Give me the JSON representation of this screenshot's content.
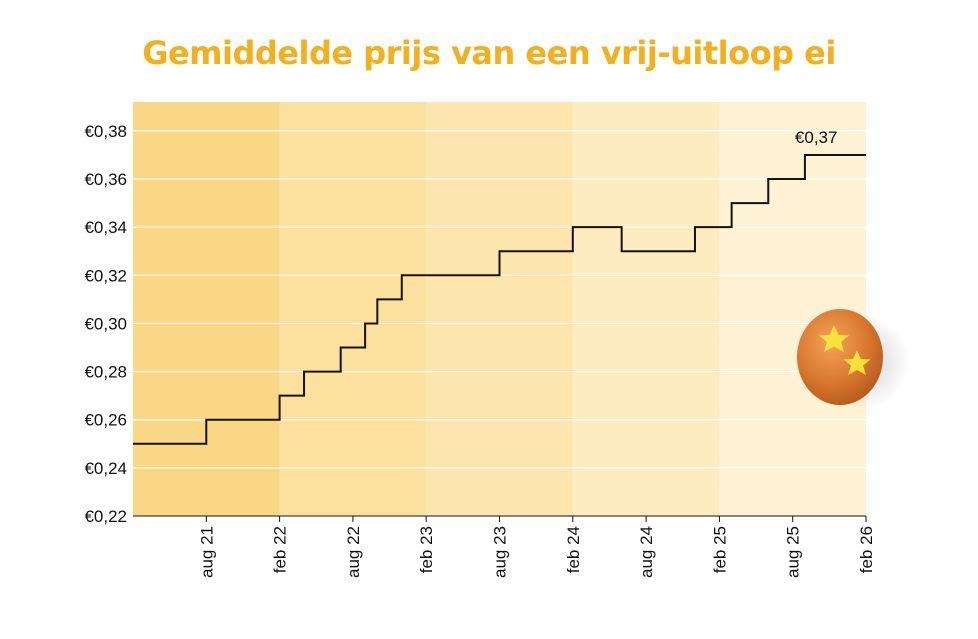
{
  "chart_data": {
    "type": "line",
    "title": "Gemiddelde prijs van een vrij-uitloop ei",
    "xlabel": "",
    "ylabel": "",
    "step": true,
    "x_ticks": [
      "aug 21",
      "feb 22",
      "aug 22",
      "feb 23",
      "aug 23",
      "feb 24",
      "aug 24",
      "feb 25",
      "aug 25",
      "feb 26"
    ],
    "y_ticks": [
      "€0,22",
      "€0,24",
      "€0,26",
      "€0,28",
      "€0,30",
      "€0,32",
      "€0,34",
      "€0,36",
      "€0,38"
    ],
    "ylim": [
      0.22,
      0.392
    ],
    "xlim": [
      "2021-02",
      "2026-02"
    ],
    "grid": true,
    "series": [
      {
        "x": [
          "2021-02",
          "2021-08",
          "2022-02",
          "2022-04",
          "2022-07",
          "2022-09",
          "2022-10",
          "2022-12",
          "2023-08",
          "2024-02",
          "2024-06",
          "2024-12",
          "2025-03",
          "2025-06",
          "2025-09"
        ],
        "values": [
          0.25,
          0.26,
          0.27,
          0.28,
          0.29,
          0.3,
          0.31,
          0.32,
          0.33,
          0.34,
          0.33,
          0.34,
          0.35,
          0.36,
          0.37
        ],
        "x_end": "2026-02",
        "color": "#111111"
      }
    ],
    "annotations": [
      {
        "text": "€0,37",
        "x": "2025-09",
        "y": 0.37
      }
    ],
    "background_bands": [
      "#f9d784",
      "#fbe19d",
      "#fce6ad",
      "#fdecbf",
      "#fef2d4",
      "#fff6e3"
    ]
  }
}
